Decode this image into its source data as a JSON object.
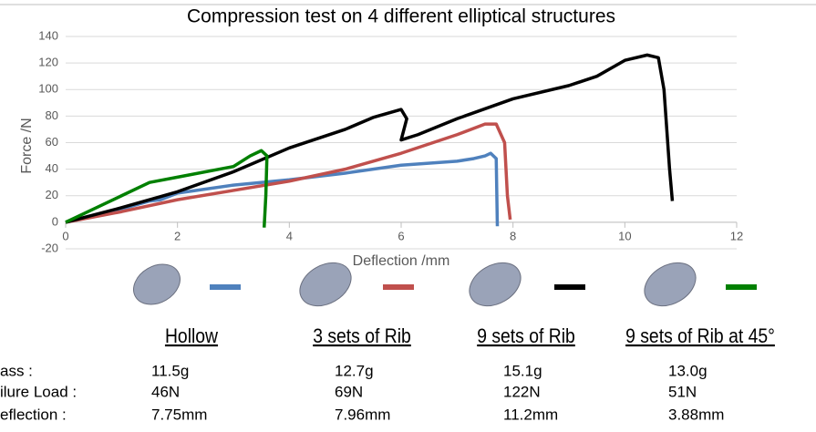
{
  "chart_data": {
    "type": "line",
    "title": "Compression test on 4 different elliptical structures",
    "x_label": "Deflection /mm",
    "y_label": "Force /N",
    "xlim": [
      0,
      12
    ],
    "xticks": [
      0,
      2,
      4,
      6,
      8,
      10,
      12
    ],
    "ylim": [
      -20,
      140
    ],
    "yticks": [
      -20,
      0,
      20,
      40,
      60,
      80,
      100,
      120,
      140
    ],
    "grid": true,
    "series": [
      {
        "name": "Hollow",
        "color": "#4f81bd",
        "x": [
          0,
          1,
          1.5,
          1.7,
          2,
          3,
          4,
          5,
          6,
          7,
          7.3,
          7.5,
          7.6,
          7.7,
          7.72
        ],
        "values": [
          0,
          10,
          16,
          17,
          22,
          28,
          32,
          37,
          43,
          46,
          48,
          50,
          52,
          48,
          -3
        ]
      },
      {
        "name": "3 sets of Rib",
        "color": "#c0504d",
        "x": [
          0,
          1,
          2,
          3,
          4,
          5,
          6,
          7,
          7.5,
          7.7,
          7.85,
          7.9,
          7.95
        ],
        "values": [
          0,
          8,
          17,
          24,
          31,
          40,
          52,
          66,
          74,
          74,
          60,
          20,
          2
        ]
      },
      {
        "name": "9 sets of Rib",
        "color": "#000000",
        "x": [
          0,
          1,
          2,
          3,
          4,
          5,
          5.5,
          6,
          6.1,
          6,
          6.3,
          7,
          8,
          9,
          9.5,
          10,
          10.4,
          10.6,
          10.7,
          10.8,
          10.85
        ],
        "values": [
          0,
          11,
          23,
          38,
          56,
          70,
          79,
          85,
          78,
          62,
          66,
          78,
          93,
          103,
          110,
          122,
          126,
          124,
          100,
          40,
          16
        ]
      },
      {
        "name": "9 sets of Rib at 45°",
        "color": "#008000",
        "x": [
          0,
          0.5,
          1,
          1.5,
          2,
          3,
          3.3,
          3.5,
          3.6,
          3.58,
          3.55
        ],
        "values": [
          0,
          10,
          20,
          30,
          34,
          42,
          50,
          54,
          50,
          20,
          -4
        ]
      }
    ]
  },
  "table": {
    "rows": [
      {
        "label": "ass :",
        "cells": [
          "11.5g",
          "12.7g",
          "15.1g",
          "13.0g"
        ]
      },
      {
        "label": "ilure Load :",
        "cells": [
          "46N",
          "69N",
          "122N",
          "51N"
        ]
      },
      {
        "label": "eflection :",
        "cells": [
          "7.75mm",
          "7.96mm",
          "11.2mm",
          "3.88mm"
        ]
      }
    ]
  }
}
